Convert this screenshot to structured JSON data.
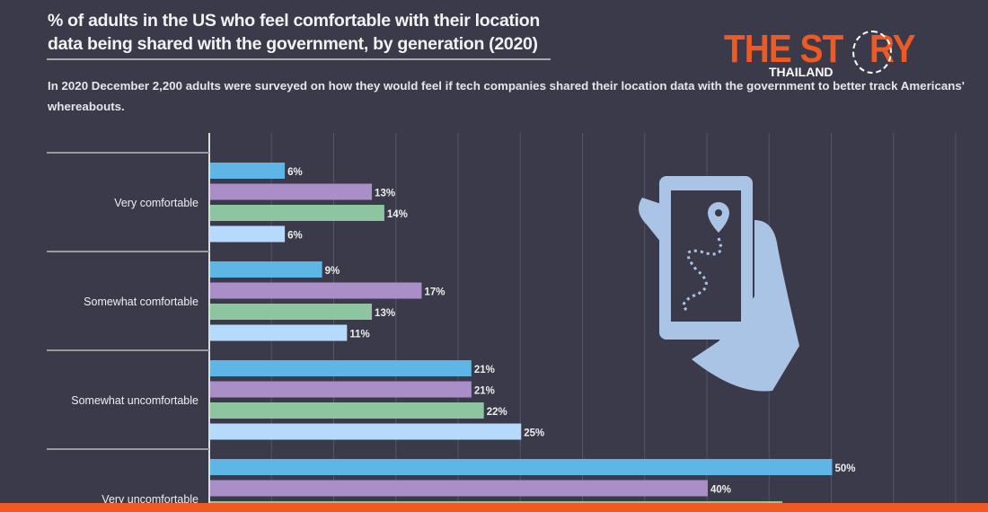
{
  "title": "% of adults in the US who feel comfortable with their location data being shared with the government, by generation (2020)",
  "subtitle": "In 2020 December 2,200 adults were surveyed on how they would feel if tech companies shared their location data with the government to better track Americans' whereabouts.",
  "logo": {
    "main": "THE STORY",
    "sub": "THAILAND"
  },
  "colors": {
    "background": "#3b3a4b",
    "footer": "#f05a22",
    "series": [
      "#5db6e6",
      "#aa8ec8",
      "#8dc5a1",
      "#b6dafc"
    ]
  },
  "chart_data": {
    "type": "bar",
    "orientation": "horizontal",
    "grid": true,
    "xlim": [
      0,
      60
    ],
    "categories": [
      "Very comfortable",
      "Somewhat comfortable",
      "Somewhat uncomfortable",
      "Very uncomfortable"
    ],
    "series": [
      {
        "values": [
          6,
          9,
          21,
          50
        ]
      },
      {
        "values": [
          13,
          17,
          21,
          40
        ]
      },
      {
        "values": [
          14,
          13,
          22,
          46
        ]
      },
      {
        "values": [
          6,
          11,
          25,
          null
        ]
      }
    ]
  }
}
